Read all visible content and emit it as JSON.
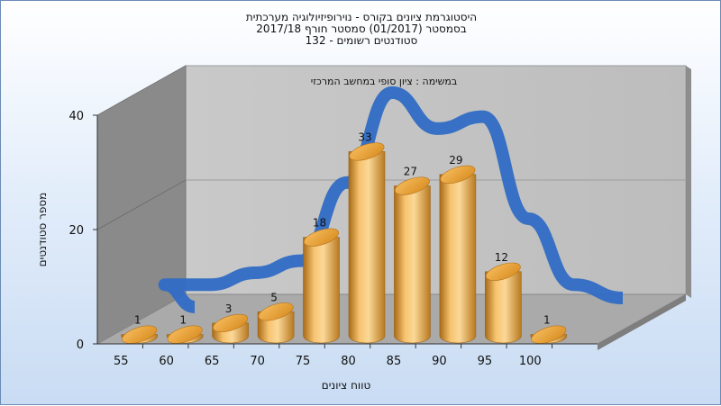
{
  "chart_data": {
    "type": "bar",
    "title": [
      "היסטוגרמת ציונים בקורס - נוירופיזיולוגיה מערכתית",
      "בסמסטר  (01/2017)  סמסטר חורף  2017/18",
      "סטודנטים רשומים - 132"
    ],
    "subtitle": "במשימה : ציון סופי במחשב המרכזי",
    "xlabel": "טווח ציונים",
    "ylabel": "מספר סטודנטים",
    "categories": [
      "55",
      "60",
      "65",
      "70",
      "75",
      "80",
      "85",
      "90",
      "95",
      "100"
    ],
    "values": [
      1,
      1,
      3,
      5,
      18,
      33,
      27,
      29,
      12,
      1
    ],
    "ylim": [
      0,
      40
    ],
    "yticks": [
      "0",
      "20",
      "40"
    ],
    "grid": true,
    "colors": {
      "bars": "#e8a53a",
      "curve": "#2f6cc4",
      "walls": "#8c8c8c",
      "floor": "#a9a9a9"
    }
  }
}
